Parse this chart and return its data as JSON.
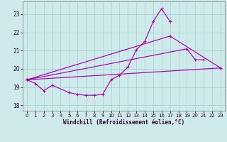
{
  "background_color": "#ceeaea",
  "grid_color": "#aad4d4",
  "line_color": "#aa00aa",
  "xlabel": "Windchill (Refroidissement éolien,°C)",
  "ylabel_ticks": [
    18,
    19,
    20,
    21,
    22,
    23
  ],
  "xlim": [
    -0.5,
    23.5
  ],
  "ylim": [
    17.7,
    23.7
  ],
  "figsize": [
    3.2,
    2.0
  ],
  "dpi": 100,
  "series1_x": [
    0,
    1,
    2,
    3,
    5,
    6,
    7,
    8,
    9,
    10,
    11,
    12,
    13,
    14,
    15,
    16,
    17
  ],
  "series1_y": [
    19.4,
    19.2,
    18.8,
    19.1,
    18.7,
    18.6,
    18.55,
    18.55,
    18.6,
    19.4,
    19.65,
    20.1,
    21.05,
    21.5,
    22.6,
    23.3,
    22.6
  ],
  "series2_x": [
    0,
    17,
    23
  ],
  "series2_y": [
    19.4,
    21.8,
    20.05
  ],
  "series3_x": [
    0,
    19,
    20,
    21
  ],
  "series3_y": [
    19.4,
    21.1,
    20.5,
    20.5
  ],
  "series4_x": [
    0,
    23
  ],
  "series4_y": [
    19.4,
    20.05
  ]
}
